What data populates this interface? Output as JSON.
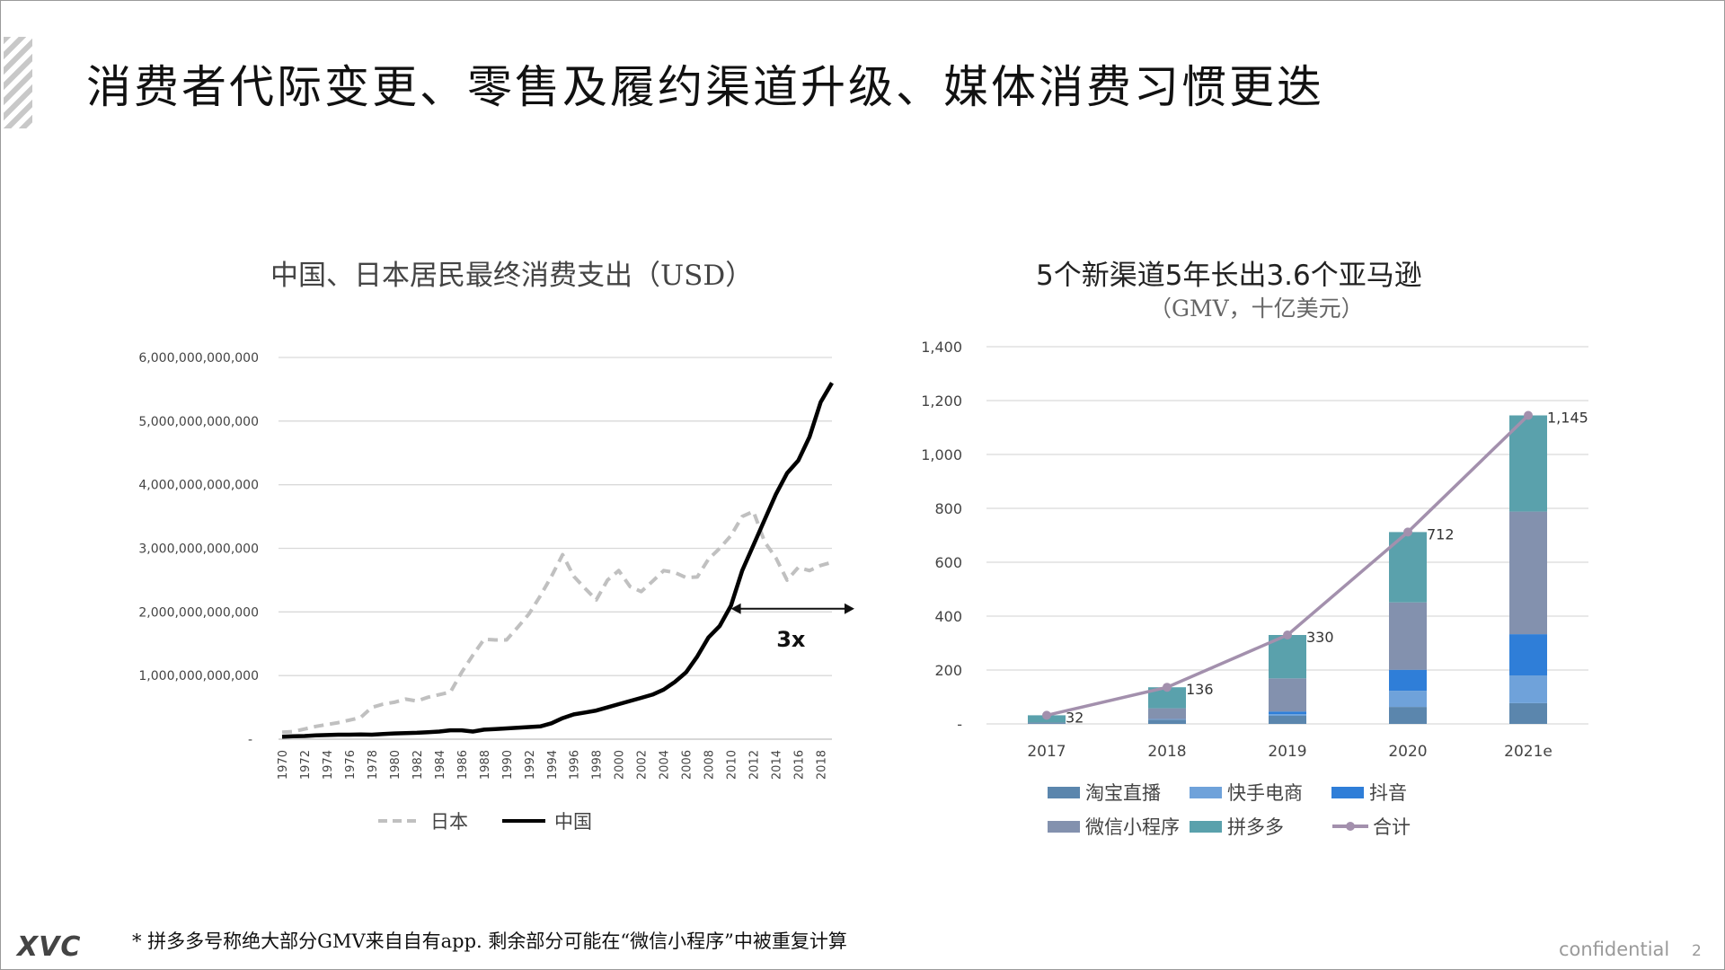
{
  "slide": {
    "title": "消费者代际变更、零售及履约渠道升级、媒体消费习惯更迭",
    "footnote": "* 拼多多号称绝大部分GMV来自自有app. 剩余部分可能在“微信小程序”中被重复计算",
    "logo": "XVC",
    "confidential": "confidential",
    "page_number": "2"
  },
  "chart_data": [
    {
      "type": "line",
      "title": "中国、日本居民最终消费支出（USD）",
      "ylim": [
        0,
        6000000000000
      ],
      "y_ticks": [
        "-",
        "1,000,000,000,000",
        "2,000,000,000,000",
        "3,000,000,000,000",
        "4,000,000,000,000",
        "5,000,000,000,000",
        "6,000,000,000,000"
      ],
      "x": [
        1970,
        1971,
        1972,
        1973,
        1974,
        1975,
        1976,
        1977,
        1978,
        1979,
        1980,
        1981,
        1982,
        1983,
        1984,
        1985,
        1986,
        1987,
        1988,
        1989,
        1990,
        1991,
        1992,
        1993,
        1994,
        1995,
        1996,
        1997,
        1998,
        1999,
        2000,
        2001,
        2002,
        2003,
        2004,
        2005,
        2006,
        2007,
        2008,
        2009,
        2010,
        2011,
        2012,
        2013,
        2014,
        2015,
        2016,
        2017,
        2018,
        2019
      ],
      "x_tick_labels": [
        "1970",
        "1972",
        "1974",
        "1976",
        "1978",
        "1980",
        "1982",
        "1984",
        "1986",
        "1988",
        "1990",
        "1992",
        "1994",
        "1996",
        "1998",
        "2000",
        "2002",
        "2004",
        "2006",
        "2008",
        "2010",
        "2012",
        "2014",
        "2016",
        "2018"
      ],
      "series": [
        {
          "name": "日本",
          "color": "#c0c0c0",
          "dashed": true,
          "values": [
            110000000000,
            120000000000,
            160000000000,
            200000000000,
            230000000000,
            260000000000,
            300000000000,
            340000000000,
            500000000000,
            550000000000,
            580000000000,
            630000000000,
            600000000000,
            660000000000,
            700000000000,
            740000000000,
            1050000000000,
            1320000000000,
            1570000000000,
            1560000000000,
            1560000000000,
            1760000000000,
            1970000000000,
            2250000000000,
            2560000000000,
            2900000000000,
            2560000000000,
            2370000000000,
            2190000000000,
            2500000000000,
            2650000000000,
            2400000000000,
            2320000000000,
            2480000000000,
            2650000000000,
            2620000000000,
            2540000000000,
            2550000000000,
            2830000000000,
            3000000000000,
            3200000000000,
            3500000000000,
            3580000000000,
            3100000000000,
            2850000000000,
            2500000000000,
            2700000000000,
            2650000000000,
            2730000000000,
            2780000000000
          ]
        },
        {
          "name": "中国",
          "color": "#000000",
          "dashed": false,
          "values": [
            40000000000,
            45000000000,
            50000000000,
            60000000000,
            65000000000,
            70000000000,
            70000000000,
            75000000000,
            70000000000,
            80000000000,
            90000000000,
            95000000000,
            100000000000,
            110000000000,
            120000000000,
            140000000000,
            140000000000,
            120000000000,
            150000000000,
            160000000000,
            170000000000,
            180000000000,
            190000000000,
            200000000000,
            250000000000,
            330000000000,
            390000000000,
            420000000000,
            450000000000,
            500000000000,
            550000000000,
            600000000000,
            650000000000,
            700000000000,
            780000000000,
            900000000000,
            1050000000000,
            1300000000000,
            1600000000000,
            1780000000000,
            2100000000000,
            2650000000000,
            3050000000000,
            3450000000000,
            3850000000000,
            4180000000000,
            4380000000000,
            4750000000000,
            5300000000000,
            5600000000000
          ]
        }
      ],
      "annotation": {
        "text": "3x",
        "x_from": 2010,
        "x_to": 2021,
        "y": 2050000000000
      },
      "legend": "bottom"
    },
    {
      "type": "bar",
      "stacked": true,
      "title": "5个新渠道5年长出3.6个亚马逊",
      "subtitle": "（GMV，十亿美元）",
      "categories": [
        "2017",
        "2018",
        "2019",
        "2020",
        "2021e"
      ],
      "ylim": [
        0,
        1400
      ],
      "y_ticks": [
        "-",
        "200",
        "400",
        "600",
        "800",
        "1,000",
        "1,200",
        "1,400"
      ],
      "series": [
        {
          "name": "淘宝直播",
          "color": "#5b86ad",
          "values": [
            3,
            16,
            30,
            63,
            77
          ]
        },
        {
          "name": "快手电商",
          "color": "#6fa2da",
          "values": [
            0,
            1,
            6,
            60,
            103
          ]
        },
        {
          "name": "抖音",
          "color": "#2f7ed8",
          "values": [
            0,
            1,
            10,
            78,
            153
          ]
        },
        {
          "name": "微信小程序",
          "color": "#8391ae",
          "values": [
            2,
            40,
            123,
            250,
            455
          ]
        },
        {
          "name": "拼多多",
          "color": "#5aa1ac",
          "values": [
            27,
            78,
            161,
            261,
            357
          ]
        }
      ],
      "total": {
        "name": "合计",
        "color": "#a390ad",
        "values": [
          32,
          136,
          330,
          712,
          1145
        ],
        "labels": [
          "32",
          "136",
          "330",
          "712",
          "1,145"
        ]
      },
      "legend": "bottom"
    }
  ]
}
